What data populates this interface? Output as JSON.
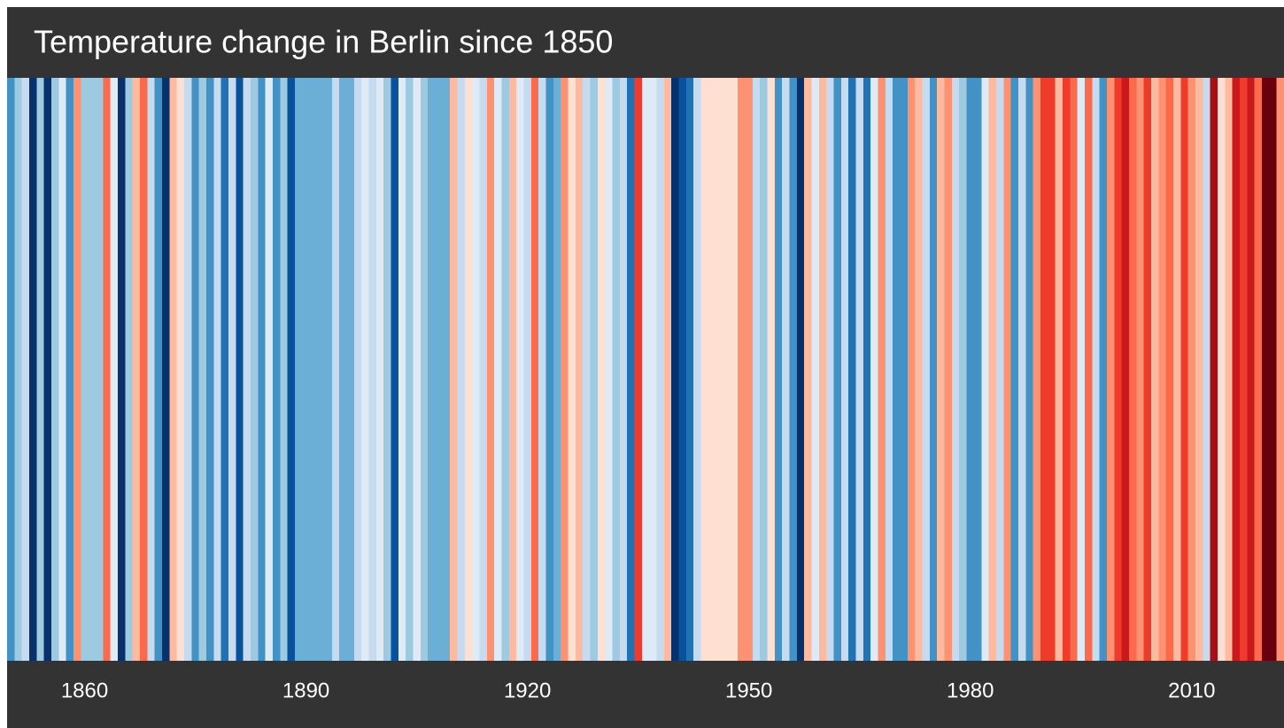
{
  "chart_data": {
    "type": "stripes",
    "title": "Temperature change in Berlin since 1850",
    "x": [
      1850,
      1851,
      1852,
      1853,
      1854,
      1855,
      1856,
      1857,
      1858,
      1859,
      1860,
      1861,
      1862,
      1863,
      1864,
      1865,
      1866,
      1867,
      1868,
      1869,
      1870,
      1871,
      1872,
      1873,
      1874,
      1875,
      1876,
      1877,
      1878,
      1879,
      1880,
      1881,
      1882,
      1883,
      1884,
      1885,
      1886,
      1887,
      1888,
      1889,
      1890,
      1891,
      1892,
      1893,
      1894,
      1895,
      1896,
      1897,
      1898,
      1899,
      1900,
      1901,
      1902,
      1903,
      1904,
      1905,
      1906,
      1907,
      1908,
      1909,
      1910,
      1911,
      1912,
      1913,
      1914,
      1915,
      1916,
      1917,
      1918,
      1919,
      1920,
      1921,
      1922,
      1923,
      1924,
      1925,
      1926,
      1927,
      1928,
      1929,
      1930,
      1931,
      1932,
      1933,
      1934,
      1935,
      1936,
      1937,
      1938,
      1939,
      1940,
      1941,
      1942,
      1943,
      1944,
      1945,
      1946,
      1947,
      1948,
      1949,
      1950,
      1951,
      1952,
      1953,
      1954,
      1955,
      1956,
      1957,
      1958,
      1959,
      1960,
      1961,
      1962,
      1963,
      1964,
      1965,
      1966,
      1967,
      1968,
      1969,
      1970,
      1971,
      1972,
      1973,
      1974,
      1975,
      1976,
      1977,
      1978,
      1979,
      1980,
      1981,
      1982,
      1983,
      1984,
      1985,
      1986,
      1987,
      1988,
      1989,
      1990,
      1991,
      1992,
      1993,
      1994,
      1995,
      1996,
      1997,
      1998,
      1999,
      2000,
      2001,
      2002,
      2003,
      2004,
      2005,
      2006,
      2007,
      2008,
      2009,
      2010,
      2011,
      2012,
      2013,
      2014,
      2015,
      2016,
      2017,
      2018,
      2019,
      2020,
      2021,
      2022
    ],
    "values": [
      -0.55,
      -0.3,
      -0.15,
      -0.9,
      -0.3,
      -0.9,
      -0.3,
      -0.05,
      -0.55,
      0.3,
      -0.3,
      -0.3,
      -0.3,
      0.4,
      -0.05,
      -0.9,
      -0.3,
      0.15,
      0.4,
      -0.15,
      -0.55,
      -0.9,
      0.15,
      0.05,
      -0.15,
      -0.55,
      -0.3,
      -0.55,
      -0.15,
      -0.65,
      -0.15,
      -0.8,
      -0.15,
      -0.3,
      -0.55,
      -0.05,
      -0.55,
      -0.3,
      -0.8,
      -0.4,
      -0.4,
      -0.4,
      -0.4,
      -0.4,
      -0.15,
      -0.4,
      -0.4,
      -0.15,
      -0.05,
      -0.15,
      -0.05,
      -0.3,
      -0.8,
      -0.05,
      -0.3,
      -0.05,
      -0.3,
      -0.4,
      -0.4,
      -0.4,
      0.15,
      -0.15,
      0.05,
      -0.05,
      -0.15,
      0.3,
      -0.05,
      -0.3,
      0.15,
      -0.05,
      -0.15,
      0.4,
      -0.15,
      -0.55,
      -0.4,
      0.3,
      0.05,
      0.15,
      -0.15,
      -0.3,
      0.05,
      -0.05,
      -0.3,
      -0.15,
      -0.65,
      0.55,
      -0.05,
      -0.05,
      -0.15,
      0.15,
      -0.9,
      -0.8,
      -0.65,
      -0.15,
      0.05,
      0.05,
      0.05,
      0.05,
      0.05,
      0.3,
      0.3,
      -0.15,
      -0.3,
      0.05,
      -0.55,
      -0.15,
      -0.55,
      -0.9,
      0.15,
      -0.05,
      0.15,
      -0.15,
      -0.55,
      -0.15,
      -0.65,
      -0.15,
      -0.65,
      -0.05,
      0.3,
      -0.15,
      -0.55,
      -0.55,
      0.3,
      0.15,
      -0.15,
      -0.55,
      0.15,
      0.3,
      -0.15,
      -0.3,
      -0.55,
      -0.55,
      -0.05,
      0.15,
      -0.15,
      0.3,
      -0.55,
      -0.15,
      -0.55,
      0.3,
      0.55,
      0.55,
      0.15,
      0.55,
      0.4,
      -0.05,
      0.4,
      -0.15,
      -0.55,
      0.3,
      0.55,
      0.65,
      0.4,
      0.3,
      0.55,
      0.15,
      0.3,
      0.4,
      0.15,
      0.55,
      0.3,
      0.15,
      -0.15,
      0.8,
      0.05,
      0.15,
      0.65,
      0.55,
      0.65,
      0.4,
      0.9,
      0.9,
      0.3
    ],
    "clim": [
      -1,
      1
    ],
    "colormap": [
      "#08306b",
      "#08519c",
      "#2171b5",
      "#4292c6",
      "#6baed6",
      "#9ecae1",
      "#c6dbef",
      "#deebf7",
      "#fee0d2",
      "#fcbba1",
      "#fc9272",
      "#fb6a4a",
      "#ef3b2c",
      "#cb181d",
      "#a50f15",
      "#67000d"
    ],
    "xlim": [
      1849.5,
      2022.5
    ],
    "xticks": [
      1860,
      1890,
      1920,
      1950,
      1980,
      2010
    ]
  }
}
